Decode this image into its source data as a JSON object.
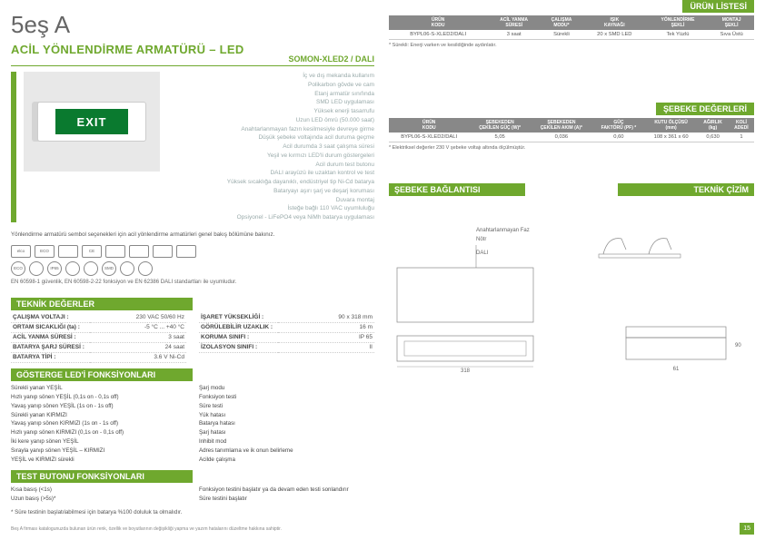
{
  "logo": "5eş A",
  "title_main": "ACİL YÖNLENDİRME ARMATÜRÜ – LED",
  "subtitle": "SOMON-XLED2 / DALI",
  "exit_text": "EXIT",
  "features": [
    "İç ve dış mekanda kullanım",
    "Polikarbon gövde ve cam",
    "Etanj armatür sınıfında",
    "SMD LED uygulaması",
    "Yüksek enerji tasarrufu",
    "Uzun LED ömrü (50.000 saat)",
    "Anahtarlanmayan fazın kesilmesiyle devreye girme",
    "Düşük şebeke voltajında acil duruma geçme",
    "Acil durumda 3 saat çalışma süresi",
    "Yeşil ve kırmızı LED'li durum göstergeleri",
    "Acil durum test butonu",
    "DALI arayüzü ile uzaktan kontrol ve test",
    "Yüksek sıcaklığa dayanıklı, endüstriyel tip Ni-Cd batarya",
    "Bataryayı aşırı şarj ve deşarj koruması",
    "Duvara montaj",
    "İsteğe bağlı 110 VAC uyumluluğu",
    "Opsiyonel - LiFePO4 veya NiMh batarya uygulaması"
  ],
  "symbol_note": "Yönlendirme armatürü sembol seçenekleri için acil yönlendirme armatürleri genel bakış bölümüne bakınız.",
  "std_note": "EN 60598-1 güvenlik, EN 60598-2-22 fonksiyon ve EN 62386 DALI standartları ile uyumludur.",
  "icon_labels_top": [
    "elco",
    "ECO",
    "",
    "CE",
    "",
    "",
    "",
    ""
  ],
  "icon_labels_bot": [
    "ECO",
    "",
    "IP65",
    "",
    "",
    "SMD",
    "",
    ""
  ],
  "sec_tech": "TEKNİK DEĞERLER",
  "tech_left": [
    {
      "l": "ÇALIŞMA VOLTAJI :",
      "v": "230 VAC 50/60 Hz"
    },
    {
      "l": "ORTAM SICAKLIĞI (ta) :",
      "v": "-5 °C ... +40 °C"
    },
    {
      "l": "ACİL YANMA SÜRESİ :",
      "v": "3 saat"
    },
    {
      "l": "BATARYA ŞARJ SÜRESİ :",
      "v": "24 saat"
    },
    {
      "l": "BATARYA TİPİ :",
      "v": "3.6 V Ni-Cd"
    }
  ],
  "tech_right": [
    {
      "l": "İŞARET YÜKSEKLİĞİ :",
      "v": "90 x 318 mm"
    },
    {
      "l": "GÖRÜLEBİLİR UZAKLIK :",
      "v": "16 m"
    },
    {
      "l": "KORUMA SINIFI :",
      "v": "IP 65"
    },
    {
      "l": "İZOLASYON SINIFI :",
      "v": "II"
    }
  ],
  "sec_ind": "GÖSTERGE LED'İ FONKSİYONLARI",
  "ind_left": [
    "Sürekli yanan YEŞİL",
    "Hızlı yanıp sönen YEŞİL (0,1s on - 0,1s off)",
    "Yavaş yanıp sönen YEŞİL (1s on - 1s off)",
    "Sürekli yanan KIRMIZI",
    "Yavaş yanıp sönen KIRMIZI (1s on - 1s off)",
    "Hızlı yanıp sönen KIRMIZI (0,1s on - 0,1s off)",
    "İki kere yanıp sönen YEŞİL",
    "Sırayla yanıp sönen YEŞİL – KIRMIZI",
    "YEŞİL ve KIRMIZI sürekli"
  ],
  "ind_right": [
    "Şarj modu",
    "Fonksiyon testi",
    "Süre testi",
    "Yük hatası",
    "Batarya hatası",
    "Şarj hatası",
    "Inhibit mod",
    "Adres tanımlama ve ik onun belirleme",
    "Acilde çalışma"
  ],
  "sec_btn": "TEST BUTONU FONKSİYONLARI",
  "btn_left": [
    "Kısa basış (<1s)",
    "Uzun basış (>5s)*"
  ],
  "btn_right": [
    "Fonksiyon testini başlatır ya da devam eden testi sonlandırır",
    "Süre testini başlatır"
  ],
  "btn_note": "* Süre testinin başlatılabilmesi için batarya %100 doluluk ta olmalıdır.",
  "sec_urun": "ÜRÜN LİSTESİ",
  "urun_hdr": [
    "ÜRÜN\nKODU",
    "ACİL YANMA\nSÜRESİ",
    "ÇALIŞMA\nMODU*",
    "IŞIK\nKAYNAĞI",
    "YÖNLENDİRME\nŞEKLİ",
    "MONTAJ\nŞEKLİ"
  ],
  "urun_row": [
    "BYPL06-S-XLED2/DALI",
    "3 saat",
    "Sürekli",
    "20 x SMD LED",
    "Tek Yüzlü",
    "Sıva Üstü"
  ],
  "urun_note": "* Sürekli: Enerji varken ve kesildiğinde aydınlatır.",
  "sec_seb": "ŞEBEKE DEĞERLERİ",
  "seb_hdr": [
    "ÜRÜN\nKODU",
    "ŞEBEKEDEN\nÇEKİLEN GÜÇ (W)*",
    "ŞEBEKEDEN\nÇEKİLEN AKIM (A)*",
    "GÜÇ\nFAKTÖRÜ (PF) *",
    "KUTU ÖLÇÜSÜ\n(mm)",
    "AĞIRLIK\n(kg)",
    "KOLİ\nADEDİ"
  ],
  "seb_row": [
    "BYPL06-S-XLED2/DALI",
    "5,05",
    "0,036",
    "0,60",
    "108 x 361 x 60",
    "0,630",
    "1"
  ],
  "seb_note": "* Elektriksel değerler 230 V şebeke voltajı altında ölçülmüştür.",
  "sec_bag": "ŞEBEKE BAĞLANTISI",
  "sec_ciz": "TEKNİK ÇİZİM",
  "diag_labels": {
    "faz": "Anahtarlanmayan Faz",
    "notr": "Nötr",
    "dali": "DALI",
    "w": "318",
    "h": "90",
    "d": "61"
  },
  "footer_text": "Beş A firması katalogunuzda bulunan ürün renk, özellik ve boyutlarının değişikliği yapma ve yazım hatalarını düzeltme hakkına sahiptir.",
  "page_num": "15"
}
